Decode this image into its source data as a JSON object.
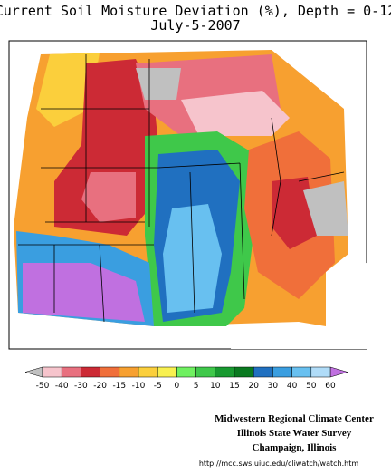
{
  "header": {
    "title": "Current Soil Moisture Deviation (%), Depth = 0-12",
    "date": "July-5-2007"
  },
  "legend": {
    "ticks": [
      -50,
      -40,
      -30,
      -20,
      -15,
      -10,
      -5,
      0,
      5,
      10,
      15,
      20,
      30,
      40,
      50,
      60
    ],
    "colors": [
      "#f6c4cc",
      "#e8707f",
      "#cc2a35",
      "#f06f3a",
      "#f7a030",
      "#fbcf3c",
      "#f8f050",
      "#6ff060",
      "#3fc84a",
      "#189a30",
      "#0a7a20",
      "#2070c0",
      "#3a9ee0",
      "#68c0f0",
      "#b0dcf8"
    ],
    "low_color": "#c0c0c0",
    "high_color": "#c070e0"
  },
  "credits": {
    "line1": "Midwestern Regional Climate Center",
    "line2": "Illinois State Water Survey",
    "line3": "Champaign, Illinois",
    "url": "http://mcc.sws.uiuc.edu/cliwatch/watch.htm"
  }
}
